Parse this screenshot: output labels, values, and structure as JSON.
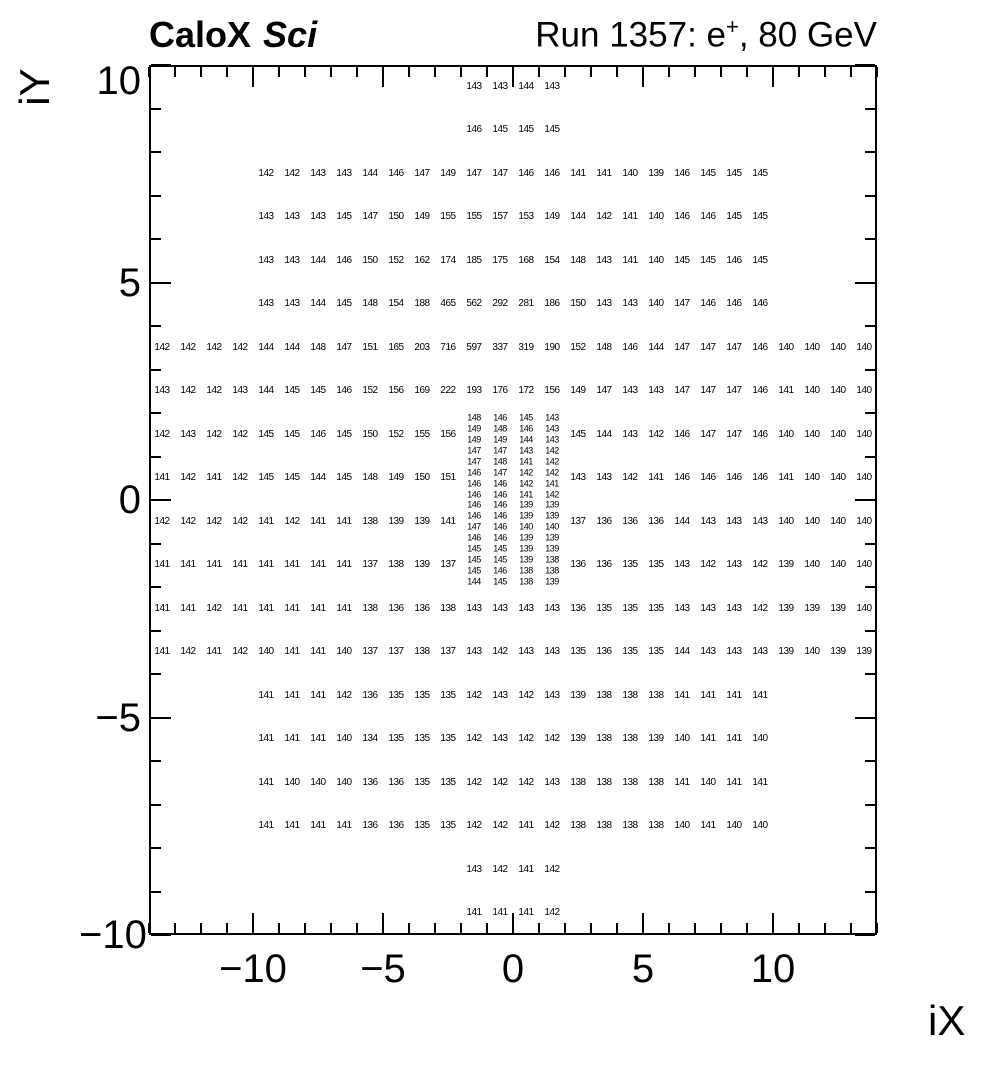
{
  "header": {
    "brand": "CaloX",
    "brand_sub": "Sci",
    "run_prefix": "Run 1357: e",
    "run_sup": "+",
    "run_suffix": ", 80 GeV"
  },
  "axes": {
    "x": {
      "title": "iX",
      "min": -14,
      "max": 14,
      "major_ticks": [
        -10,
        -5,
        0,
        5,
        10
      ],
      "major_labels": [
        "−10",
        "−5",
        "0",
        "5",
        "10"
      ]
    },
    "y": {
      "title": "iY",
      "min": -10,
      "max": 10,
      "major_ticks": [
        -10,
        -5,
        0,
        5,
        10
      ],
      "major_labels": [
        "−10",
        "−5",
        "0",
        "5",
        "10"
      ]
    }
  },
  "colors": {
    "cell_base": "#671df1",
    "cell_hot": "#2e2ee2",
    "frame": "#000000",
    "text": "#000000",
    "background": "#ffffff"
  },
  "chart_data": {
    "type": "heatmap",
    "title": "Run 1357: e+, 80 GeV",
    "detector": "CaloX Sci",
    "xlabel": "iX",
    "ylabel": "iY",
    "x_range": [
      -14,
      14
    ],
    "y_range": [
      -10,
      10
    ],
    "z_min_visible": 134,
    "z_max_visible": 716,
    "grid": false,
    "coverage_regions": [
      {
        "x": [
          -2,
          2
        ],
        "y": [
          8,
          10
        ]
      },
      {
        "x": [
          -10,
          10
        ],
        "y": [
          4,
          8
        ]
      },
      {
        "x": [
          -14,
          14
        ],
        "y": [
          -4,
          4
        ]
      },
      {
        "x": [
          -10,
          10
        ],
        "y": [
          -8,
          -4
        ]
      },
      {
        "x": [
          -2,
          2
        ],
        "y": [
          -10,
          -8
        ]
      }
    ],
    "highlight_region": {
      "x": [
        -3,
        -1
      ],
      "y": [
        3,
        5
      ],
      "values": [
        [
          465,
          562
        ],
        [
          716,
          597
        ]
      ]
    },
    "split_rows_right_x0": 2,
    "rows": [
      {
        "iy": 9.5,
        "x0": -2,
        "v": [
          143,
          143,
          144,
          143
        ]
      },
      {
        "iy": 8.5,
        "x0": -2,
        "v": [
          146,
          145,
          145,
          145
        ]
      },
      {
        "iy": 7.5,
        "x0": -10,
        "v": [
          142,
          142,
          143,
          143,
          144,
          146,
          147,
          149,
          147,
          147,
          146,
          146,
          141,
          141,
          140,
          139,
          146,
          145,
          145,
          145
        ]
      },
      {
        "iy": 6.5,
        "x0": -10,
        "v": [
          143,
          143,
          143,
          145,
          147,
          150,
          149,
          155,
          155,
          157,
          153,
          149,
          144,
          142,
          141,
          140,
          146,
          146,
          145,
          145
        ]
      },
      {
        "iy": 5.5,
        "x0": -10,
        "v": [
          143,
          143,
          144,
          146,
          150,
          152,
          162,
          174,
          185,
          175,
          168,
          154,
          148,
          143,
          141,
          140,
          145,
          145,
          146,
          145
        ]
      },
      {
        "iy": 4.5,
        "x0": -10,
        "v": [
          143,
          143,
          144,
          145,
          148,
          154,
          188,
          465,
          562,
          292,
          281,
          186,
          150,
          143,
          143,
          140,
          147,
          146,
          146,
          146
        ]
      },
      {
        "iy": 3.5,
        "x0": -14,
        "v": [
          142,
          142,
          142,
          142,
          144,
          144,
          148,
          147,
          151,
          165,
          203,
          716,
          597,
          337,
          319,
          190,
          152,
          148,
          146,
          144,
          147,
          147,
          147,
          146,
          140,
          140,
          140,
          140
        ]
      },
      {
        "iy": 2.5,
        "x0": -14,
        "v": [
          143,
          142,
          142,
          143,
          144,
          145,
          145,
          146,
          152,
          156,
          169,
          222,
          193,
          176,
          172,
          156,
          149,
          147,
          143,
          143,
          147,
          147,
          147,
          146,
          141,
          140,
          140,
          140
        ]
      },
      {
        "iy": 1.5,
        "x0": -14,
        "v": [
          142,
          143,
          142,
          142,
          145,
          145,
          146,
          145,
          150,
          152,
          155,
          156
        ],
        "v2": [
          145,
          144,
          143,
          142,
          146,
          147,
          147,
          146,
          140,
          140,
          140,
          140
        ]
      },
      {
        "iy": 0.5,
        "x0": -14,
        "v": [
          141,
          142,
          141,
          142,
          145,
          145,
          144,
          145,
          148,
          149,
          150,
          151
        ],
        "v2": [
          143,
          143,
          142,
          141,
          146,
          146,
          146,
          146,
          141,
          140,
          140,
          140
        ]
      },
      {
        "iy": -0.5,
        "x0": -14,
        "v": [
          142,
          142,
          142,
          142,
          141,
          142,
          141,
          141,
          138,
          139,
          139,
          141
        ],
        "v2": [
          137,
          136,
          136,
          136,
          144,
          143,
          143,
          143,
          140,
          140,
          140,
          140
        ]
      },
      {
        "iy": -1.5,
        "x0": -14,
        "v": [
          141,
          141,
          141,
          141,
          141,
          141,
          141,
          141,
          137,
          138,
          139,
          137
        ],
        "v2": [
          136,
          136,
          135,
          135,
          143,
          142,
          143,
          142,
          139,
          140,
          140,
          140
        ]
      },
      {
        "iy": -2.5,
        "x0": -14,
        "v": [
          141,
          141,
          142,
          141,
          141,
          141,
          141,
          141,
          138,
          136,
          136,
          138,
          143,
          143,
          143,
          143,
          136,
          135,
          135,
          135,
          143,
          143,
          143,
          142,
          139,
          139,
          139,
          140
        ]
      },
      {
        "iy": -3.5,
        "x0": -14,
        "v": [
          141,
          142,
          141,
          142,
          140,
          141,
          141,
          140,
          137,
          137,
          138,
          137,
          143,
          142,
          143,
          143,
          135,
          136,
          135,
          135,
          144,
          143,
          143,
          143,
          139,
          140,
          139,
          139
        ]
      },
      {
        "iy": -4.5,
        "x0": -10,
        "v": [
          141,
          141,
          141,
          142,
          136,
          135,
          135,
          135,
          142,
          143,
          142,
          143,
          139,
          138,
          138,
          138,
          141,
          141,
          141,
          141
        ]
      },
      {
        "iy": -5.5,
        "x0": -10,
        "v": [
          141,
          141,
          141,
          140,
          134,
          135,
          135,
          135,
          142,
          143,
          142,
          142,
          139,
          138,
          138,
          139,
          140,
          141,
          141,
          140
        ]
      },
      {
        "iy": -6.5,
        "x0": -10,
        "v": [
          141,
          140,
          140,
          140,
          136,
          136,
          135,
          135,
          142,
          142,
          142,
          143,
          138,
          138,
          138,
          138,
          141,
          140,
          141,
          141
        ]
      },
      {
        "iy": -7.5,
        "x0": -10,
        "v": [
          141,
          141,
          141,
          141,
          136,
          136,
          135,
          135,
          142,
          142,
          141,
          142,
          138,
          138,
          138,
          138,
          140,
          141,
          140,
          140
        ]
      },
      {
        "iy": -8.5,
        "x0": -2,
        "v": [
          143,
          142,
          141,
          142
        ]
      },
      {
        "iy": -9.5,
        "x0": -2,
        "v": [
          141,
          141,
          141,
          142
        ]
      }
    ],
    "fine_block": {
      "x_centers": [
        -1.5,
        -0.5,
        0.5,
        1.5
      ],
      "iy_first": 1.875,
      "iy_step": -0.25,
      "rows": [
        [
          148,
          146,
          145,
          143
        ],
        [
          149,
          148,
          146,
          143
        ],
        [
          149,
          149,
          144,
          143
        ],
        [
          147,
          147,
          143,
          142
        ],
        [
          147,
          148,
          141,
          142
        ],
        [
          146,
          147,
          142,
          142
        ],
        [
          146,
          146,
          142,
          141
        ],
        [
          146,
          146,
          141,
          142
        ],
        [
          146,
          146,
          139,
          139
        ],
        [
          146,
          146,
          139,
          139
        ],
        [
          147,
          146,
          140,
          140
        ],
        [
          146,
          146,
          139,
          139
        ],
        [
          145,
          145,
          139,
          139
        ],
        [
          145,
          145,
          139,
          138
        ],
        [
          145,
          146,
          138,
          138
        ],
        [
          144,
          145,
          138,
          139
        ]
      ]
    }
  }
}
